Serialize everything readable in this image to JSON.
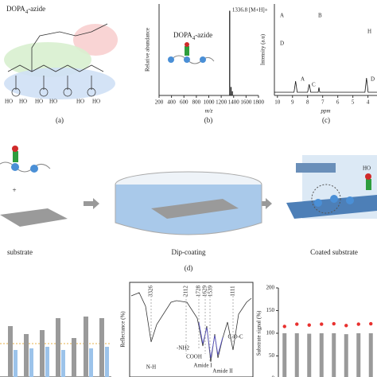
{
  "figure": {
    "panel_a": {
      "label": "(a)",
      "name": [
        "DOPA",
        "4",
        "-azide"
      ],
      "hydroxyls": [
        "HO",
        "HO",
        "HO",
        "HO",
        "HO",
        "HO"
      ]
    },
    "panel_b": {
      "label": "(b)",
      "name": [
        "DOPA",
        "4",
        "-azide"
      ]
    },
    "panel_c": {
      "label": "(c)",
      "structures": [
        "A",
        "B",
        "D",
        "H"
      ],
      "peaks": [
        "A",
        "C",
        "D"
      ]
    },
    "panel_d": {
      "label": "(d)",
      "plus": "+",
      "steps": [
        "substrate",
        "Dip-coating",
        "Coated substrate"
      ],
      "hydroxyl": "HO"
    },
    "panel_f": {
      "ylabel": "Reflectance (%)",
      "peaks": [
        "3326",
        "2112",
        "1728",
        "1629",
        "1539",
        "1111"
      ],
      "groups": [
        "N-H",
        "-NH2",
        "COOH",
        "Amide I",
        "Amide II",
        "C-O-C"
      ]
    }
  },
  "chart_data": [
    {
      "type": "spectrum",
      "ylabel": "Relative abundance",
      "xlabel": "m/z",
      "annotation": "1336.8 [M+H]+",
      "x": [
        1336.8,
        1358,
        1380
      ],
      "values": [
        100,
        10,
        5
      ],
      "ylim": [
        0,
        108
      ],
      "xlim": [
        200,
        1800
      ],
      "xticks": [
        200,
        400,
        600,
        800,
        1000,
        1200,
        1400,
        1600,
        1800
      ],
      "color": "#111"
    },
    {
      "type": "nmr",
      "ylabel": "Intensity (a.u)",
      "xlabel": "ppm",
      "xlim": [
        10.2,
        3.4
      ],
      "xticks": [
        10,
        9,
        8,
        7,
        6,
        5,
        4
      ],
      "color": "#111"
    },
    {
      "type": "bar",
      "ylabel": "Substrate signal (%)",
      "categories": [
        null,
        null,
        null,
        null,
        null,
        null,
        null,
        null
      ],
      "series": [
        {
          "color": "#9a9a9a",
          "values": [
            100,
            100,
            99,
            100,
            100,
            98,
            100,
            100
          ]
        },
        {
          "color": "#e8312f",
          "marker": "dot",
          "values": [
            115,
            120,
            118,
            120,
            121,
            117,
            120,
            121
          ]
        }
      ],
      "ylim": [
        0,
        200
      ],
      "yticks": [
        0,
        50,
        100,
        150,
        200
      ]
    }
  ]
}
